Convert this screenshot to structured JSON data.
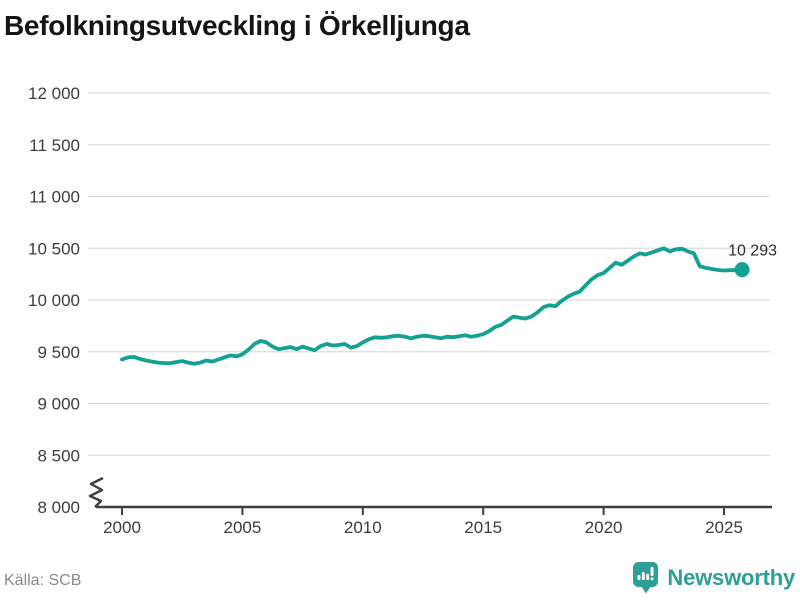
{
  "title": "Befolkningsutveckling i Örkelljunga",
  "source": "Källa: SCB",
  "brand": {
    "name": "Newsworthy"
  },
  "latest": {
    "label": "10 293",
    "value": 10293
  },
  "colors": {
    "line": "#12a192",
    "brand": "#2f9e96",
    "grid": "#dcdcdc",
    "axis": "#3f3f3f",
    "tick_text": "#3d3d3d",
    "title_text": "#151515",
    "source_text": "#8a8a8a"
  },
  "chart_data": {
    "type": "line",
    "title": "Befolkningsutveckling i Örkelljunga",
    "xlabel": "",
    "ylabel": "",
    "x_ticks": [
      2000,
      2005,
      2010,
      2015,
      2020,
      2025
    ],
    "y_ticks": [
      8000,
      8500,
      9000,
      9500,
      10000,
      10500,
      11000,
      11500,
      12000
    ],
    "ylim": [
      8000,
      12000
    ],
    "xlim": [
      1998.6,
      2026.9
    ],
    "y_axis_break": true,
    "grid": "horizontal",
    "legend": "none",
    "series": [
      {
        "name": "Befolkning",
        "x_start": 2000.0,
        "x_step": 0.25,
        "end_label": "10 293",
        "values": [
          9425,
          9445,
          9450,
          9430,
          9415,
          9405,
          9395,
          9390,
          9390,
          9400,
          9410,
          9395,
          9385,
          9395,
          9415,
          9405,
          9425,
          9445,
          9465,
          9455,
          9475,
          9520,
          9575,
          9605,
          9590,
          9550,
          9525,
          9535,
          9545,
          9525,
          9550,
          9530,
          9515,
          9555,
          9575,
          9560,
          9565,
          9575,
          9540,
          9555,
          9590,
          9620,
          9640,
          9635,
          9640,
          9650,
          9655,
          9645,
          9630,
          9645,
          9655,
          9650,
          9640,
          9630,
          9645,
          9640,
          9650,
          9660,
          9645,
          9655,
          9670,
          9700,
          9740,
          9760,
          9800,
          9840,
          9830,
          9820,
          9840,
          9880,
          9930,
          9950,
          9940,
          9990,
          10030,
          10060,
          10080,
          10140,
          10200,
          10240,
          10260,
          10310,
          10360,
          10340,
          10380,
          10420,
          10450,
          10440,
          10460,
          10480,
          10500,
          10470,
          10490,
          10495,
          10470,
          10450,
          10325,
          10310,
          10300,
          10290,
          10285,
          10288,
          10290,
          10293
        ]
      }
    ]
  }
}
